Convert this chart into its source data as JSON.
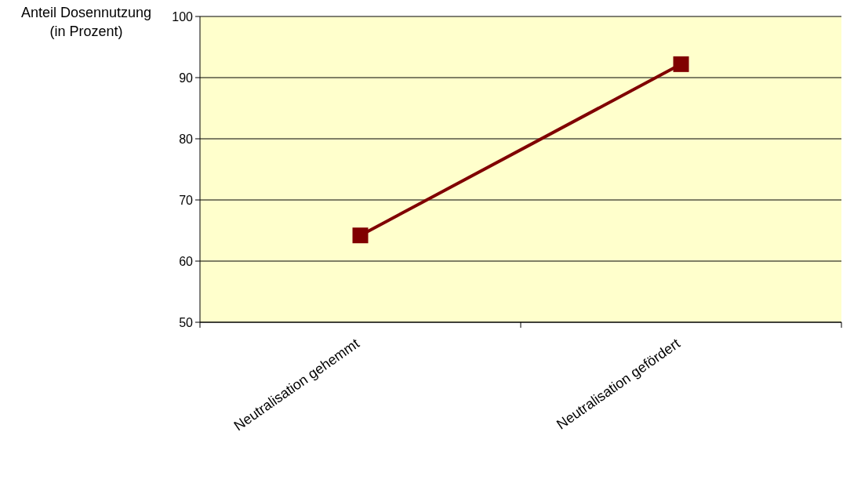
{
  "chart_data": {
    "type": "line",
    "ylabel": "Anteil Dosennutzung (in Prozent)",
    "categories": [
      "Neutralisation gehemmt",
      "Neutralisation gefördert"
    ],
    "series": [
      {
        "color": "#800000",
        "values": [
          64.2,
          92.2
        ]
      }
    ],
    "ylim": [
      50,
      100
    ],
    "yticks": [
      50,
      60,
      70,
      80,
      90,
      100
    ],
    "grid": "y",
    "marker": "square",
    "line_style": "solid"
  }
}
